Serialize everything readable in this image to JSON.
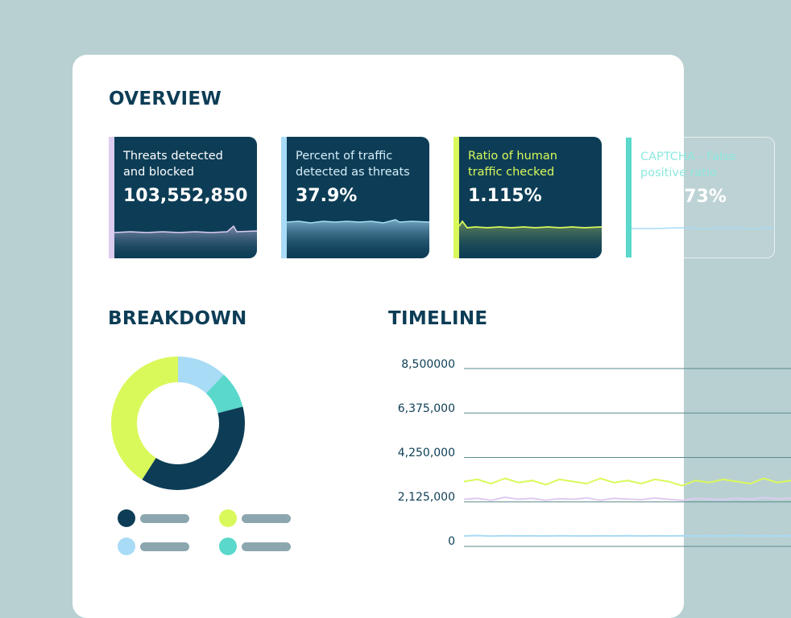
{
  "colors": {
    "background": "#b9d0d2",
    "panel": "#ffffff",
    "navy": "#0d3d56",
    "lavender": "#dccdf0",
    "sky": "#a8dbf5",
    "lime": "#d9f95a",
    "teal": "#59d8cb",
    "legend_bar": "#8ba6af"
  },
  "overview": {
    "title": "OVERVIEW",
    "cards": [
      {
        "label": "Threats detected\nand blocked",
        "value": "103,552,850",
        "accent": "#dccdf0",
        "label_color": "#ffffff"
      },
      {
        "label": "Percent of traffic\ndetected as threats",
        "value": "37.9%",
        "accent": "#a8dbf5",
        "label_color": "#d6eef9"
      },
      {
        "label": "Ratio of human\ntraffic checked",
        "value": "1.115%",
        "accent": "#d9f95a",
        "label_color": "#d9f95a"
      },
      {
        "label": "CAPTCHA - False\npositive ratio",
        "value": "0.0073%",
        "accent": "#59d8cb",
        "label_color": "#8ee9df"
      }
    ]
  },
  "breakdown": {
    "title": "BREAKDOWN",
    "segments": [
      {
        "name": "sky",
        "fraction": 0.12,
        "color": "#a8dbf5"
      },
      {
        "name": "teal",
        "fraction": 0.09,
        "color": "#59d8cb"
      },
      {
        "name": "navy",
        "fraction": 0.38,
        "color": "#0d3d56"
      },
      {
        "name": "lime",
        "fraction": 0.41,
        "color": "#d9f95a"
      }
    ],
    "legend": [
      {
        "color": "#0d3d56"
      },
      {
        "color": "#d9f95a"
      },
      {
        "color": "#a8dbf5"
      },
      {
        "color": "#59d8cb"
      }
    ]
  },
  "timeline": {
    "title": "TIMELINE",
    "y_ticks": [
      "8,500000",
      "6,375,000",
      "4,250,000",
      "2,125,000",
      "0"
    ]
  },
  "chart_data": {
    "type": "line",
    "title": "TIMELINE",
    "ylim": [
      0,
      8500000
    ],
    "y_tick_labels": [
      "0",
      "2,125,000",
      "4,250,000",
      "6,375,000",
      "8,500000"
    ],
    "grid": true,
    "series": [
      {
        "color": "#d9f95a",
        "values": [
          3100000,
          3200000,
          3000000,
          3250000,
          3050000,
          3150000,
          2950000,
          3200000,
          3100000,
          3000000,
          3250000,
          3050000,
          3150000,
          3000000,
          3200000,
          3100000,
          2900000,
          3150000,
          3050000,
          3200000,
          3100000,
          3000000,
          3250000,
          3050000,
          3150000
        ]
      },
      {
        "color": "#dccdf0",
        "values": [
          2250000,
          2300000,
          2200000,
          2350000,
          2250000,
          2300000,
          2200000,
          2280000,
          2250000,
          2320000,
          2200000,
          2300000,
          2260000,
          2230000,
          2310000,
          2250000,
          2200000,
          2290000,
          2260000,
          2240000,
          2300000,
          2250000,
          2330000,
          2270000,
          2300000
        ]
      },
      {
        "color": "#a8dbf5",
        "values": [
          500000,
          520000,
          490000,
          510000,
          500000,
          505000,
          495000,
          510000,
          500000,
          498000,
          505000,
          500000,
          512000,
          495000,
          503000,
          500000,
          508000,
          497000,
          502000,
          500000,
          515000,
          500000,
          505000,
          498000,
          510000
        ]
      }
    ]
  }
}
